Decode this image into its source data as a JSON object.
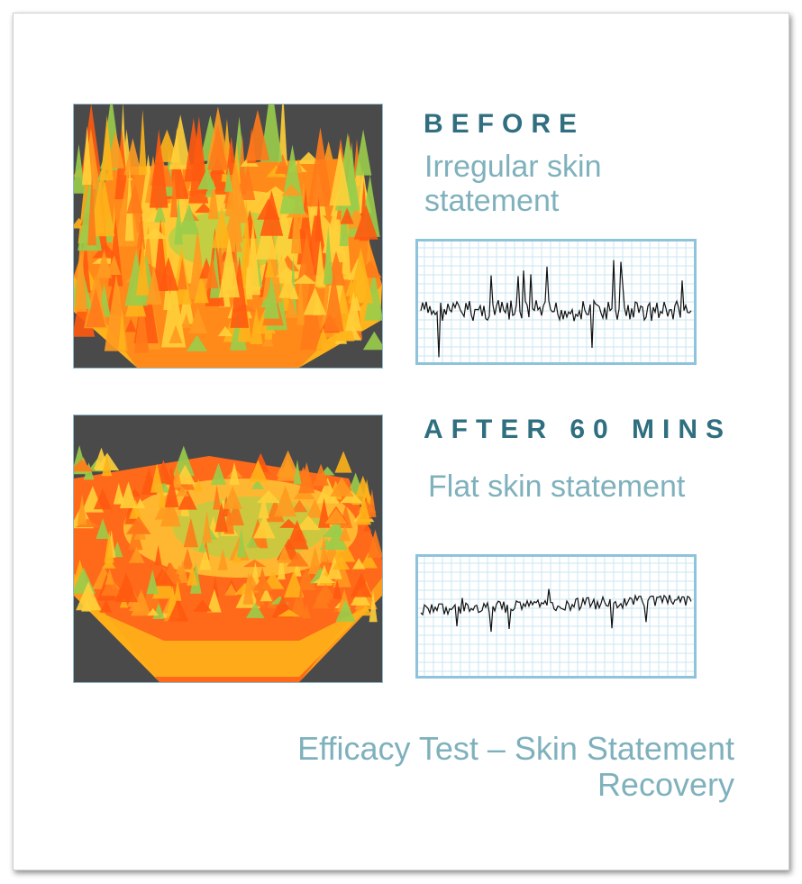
{
  "before": {
    "heading": "BEFORE",
    "description": "Irregular skin statement"
  },
  "after": {
    "heading": "AFTER 60 MINS",
    "description": "Flat skin statement"
  },
  "caption": "Efficacy Test – Skin Statement Recovery",
  "colors": {
    "heading": "#2f6f80",
    "text": "#7fb1bd",
    "render_background": "#4a4a4a",
    "surface_orange": "#ff6a1a",
    "surface_yellow": "#ffc21a",
    "surface_green": "#8ad04a",
    "grid": "#bfe3ee",
    "grid_border": "#8fc3dc"
  },
  "icons": {
    "before_render": "3d-skin-surface-irregular",
    "after_render": "3d-skin-surface-flat",
    "before_trace": "skin-profile-line-irregular",
    "after_trace": "skin-profile-line-flat"
  }
}
